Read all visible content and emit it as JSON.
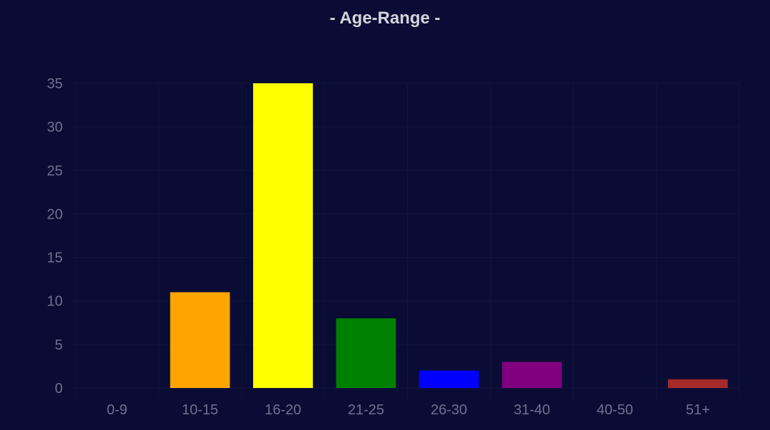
{
  "chart_data": {
    "type": "bar",
    "title": "- Age-Range -",
    "xlabel": "",
    "ylabel": "",
    "categories": [
      "0-9",
      "10-15",
      "16-20",
      "21-25",
      "26-30",
      "31-40",
      "40-50",
      "51+"
    ],
    "values": [
      0,
      11,
      35,
      8,
      2,
      3,
      0,
      1
    ],
    "colors": [
      "#000000",
      "#ffa500",
      "#ffff00",
      "#008000",
      "#0000ff",
      "#800080",
      "#000000",
      "#a52a2a"
    ],
    "ylim": [
      0,
      35
    ],
    "yticks": [
      0,
      5,
      10,
      15,
      20,
      25,
      30,
      35
    ],
    "grid": true,
    "legend": "none"
  },
  "theme": {
    "background": "#0b0c35",
    "grid_color": "#13143c",
    "tick_color": "#6f7090",
    "title_color": "#d4d4dc"
  }
}
